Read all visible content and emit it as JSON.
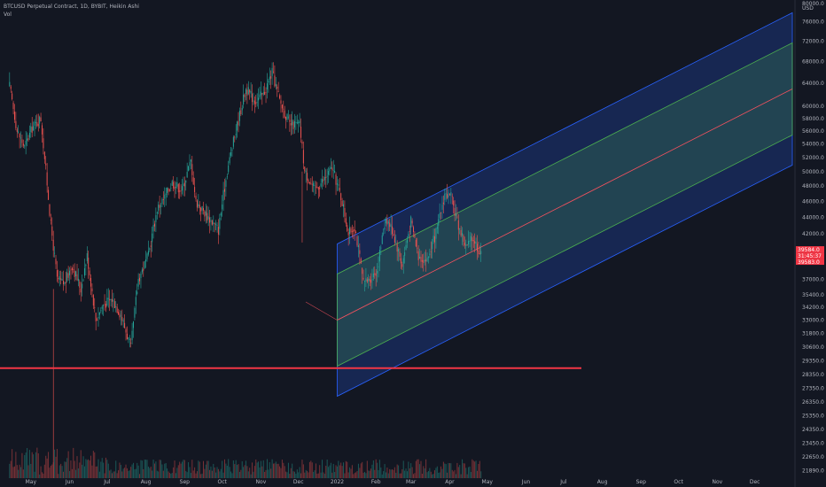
{
  "legend": {
    "symbol_line": "BTCUSD Perpetual Contract, 1D, BYBIT, Heikin Ashi",
    "volume_label": "Vol"
  },
  "axis": {
    "currency": "USD",
    "y_ticks": [
      "80000.0",
      "76000.0",
      "72000.0",
      "68000.0",
      "64000.0",
      "60000.0",
      "58000.0",
      "56000.0",
      "54000.0",
      "52000.0",
      "50000.0",
      "48000.0",
      "46000.0",
      "44000.0",
      "42000.0",
      "40000.0",
      "37000.0",
      "35400.0",
      "34200.0",
      "33000.0",
      "31800.0",
      "30600.0",
      "29350.0",
      "28350.0",
      "27350.0",
      "26350.0",
      "25350.0",
      "24350.0",
      "23450.0",
      "22650.0",
      "21890.0"
    ],
    "x_ticks": [
      "May",
      "Jun",
      "Jul",
      "Aug",
      "Sep",
      "Oct",
      "Nov",
      "Dec",
      "2022",
      "Feb",
      "Mar",
      "Apr",
      "May",
      "Jun",
      "Jul",
      "Aug",
      "Sep",
      "Oct",
      "Nov",
      "Dec"
    ]
  },
  "price_tags": [
    {
      "label": "39584.0",
      "color": "#f23645"
    },
    {
      "label": "31:45:37",
      "color": "#f23645"
    },
    {
      "label": "39583.0",
      "color": "#f23645"
    }
  ],
  "colors": {
    "background": "#131722",
    "up": "#26a69a",
    "down": "#ef5350",
    "support_line": "#f23645",
    "channel_outer": "#2962ff",
    "channel_inner": "#4caf50",
    "axis_text": "#b2b5be"
  },
  "chart_data": {
    "type": "candlestick",
    "title": "BTCUSD Perpetual Contract, 1D, BYBIT, Heikin Ashi",
    "x_range": [
      "2021-04-12",
      "2022-12-31"
    ],
    "y_scale": "log",
    "y_range_usd": [
      20000,
      80000
    ],
    "grid": false,
    "price_path_usd": [
      [
        "2021-04-14",
        63500
      ],
      [
        "2021-04-20",
        56000
      ],
      [
        "2021-04-26",
        53500
      ],
      [
        "2021-05-02",
        56500
      ],
      [
        "2021-05-09",
        58000
      ],
      [
        "2021-05-12",
        52000
      ],
      [
        "2021-05-17",
        43000
      ],
      [
        "2021-05-22",
        37000
      ],
      [
        "2021-05-28",
        36500
      ],
      [
        "2021-06-03",
        38500
      ],
      [
        "2021-06-10",
        36000
      ],
      [
        "2021-06-15",
        39500
      ],
      [
        "2021-06-22",
        33000
      ],
      [
        "2021-06-28",
        34500
      ],
      [
        "2021-07-05",
        35000
      ],
      [
        "2021-07-12",
        33500
      ],
      [
        "2021-07-20",
        30500
      ],
      [
        "2021-07-26",
        37000
      ],
      [
        "2021-08-03",
        39500
      ],
      [
        "2021-08-10",
        45000
      ],
      [
        "2021-08-16",
        46500
      ],
      [
        "2021-08-22",
        48500
      ],
      [
        "2021-08-30",
        47500
      ],
      [
        "2021-09-06",
        51500
      ],
      [
        "2021-09-10",
        46000
      ],
      [
        "2021-09-20",
        44000
      ],
      [
        "2021-09-28",
        42500
      ],
      [
        "2021-10-05",
        50000
      ],
      [
        "2021-10-12",
        56000
      ],
      [
        "2021-10-20",
        63000
      ],
      [
        "2021-10-27",
        61000
      ],
      [
        "2021-11-03",
        62000
      ],
      [
        "2021-11-10",
        66000
      ],
      [
        "2021-11-16",
        61000
      ],
      [
        "2021-11-24",
        57000
      ],
      [
        "2021-12-02",
        57000
      ],
      [
        "2021-12-06",
        50000
      ],
      [
        "2021-12-14",
        47500
      ],
      [
        "2021-12-22",
        49000
      ],
      [
        "2021-12-28",
        50500
      ],
      [
        "2022-01-05",
        46000
      ],
      [
        "2022-01-10",
        42000
      ],
      [
        "2022-01-15",
        43000
      ],
      [
        "2022-01-22",
        36500
      ],
      [
        "2022-01-27",
        37000
      ],
      [
        "2022-02-02",
        38000
      ],
      [
        "2022-02-09",
        44000
      ],
      [
        "2022-02-14",
        42500
      ],
      [
        "2022-02-22",
        38500
      ],
      [
        "2022-03-01",
        43500
      ],
      [
        "2022-03-07",
        39500
      ],
      [
        "2022-03-14",
        39000
      ],
      [
        "2022-03-22",
        42500
      ],
      [
        "2022-03-28",
        47000
      ],
      [
        "2022-04-02",
        46500
      ],
      [
        "2022-04-08",
        43000
      ],
      [
        "2022-04-14",
        40500
      ],
      [
        "2022-04-20",
        41500
      ],
      [
        "2022-04-26",
        39584
      ]
    ],
    "horizontal_line_usd": 28850,
    "regression_channel": {
      "start_date": "2022-01-01",
      "end_date": "2022-12-31",
      "mid_start_usd": 33000,
      "mid_end_usd": 63000
    },
    "last_price_usd": 39584
  }
}
